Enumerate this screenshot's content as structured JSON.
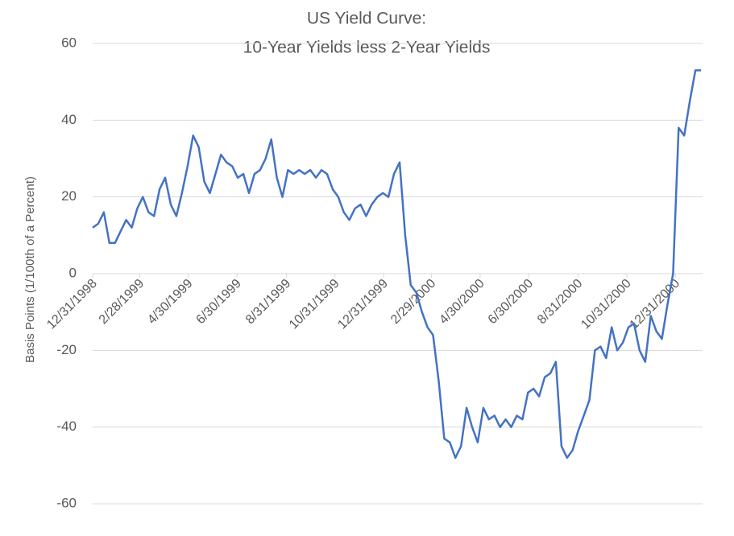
{
  "chart_data": {
    "type": "line",
    "title": [
      "US Yield Curve:",
      "10-Year Yields less 2-Year Yields"
    ],
    "y_label": "Basis Points (1/100th of a Percent)",
    "x": [
      "12/31/1998",
      "1/7/1999",
      "1/14/1999",
      "1/21/1999",
      "1/28/1999",
      "2/4/1999",
      "2/11/1999",
      "2/18/1999",
      "2/25/1999",
      "3/4/1999",
      "3/11/1999",
      "3/18/1999",
      "3/25/1999",
      "4/1/1999",
      "4/8/1999",
      "4/15/1999",
      "4/22/1999",
      "4/29/1999",
      "5/6/1999",
      "5/13/1999",
      "5/20/1999",
      "5/27/1999",
      "6/3/1999",
      "6/10/1999",
      "6/17/1999",
      "6/24/1999",
      "7/1/1999",
      "7/8/1999",
      "7/15/1999",
      "7/22/1999",
      "7/29/1999",
      "8/5/1999",
      "8/12/1999",
      "8/19/1999",
      "8/26/1999",
      "9/2/1999",
      "9/9/1999",
      "9/16/1999",
      "9/23/1999",
      "9/30/1999",
      "10/7/1999",
      "10/14/1999",
      "10/21/1999",
      "10/28/1999",
      "11/4/1999",
      "11/11/1999",
      "11/18/1999",
      "11/25/1999",
      "12/2/1999",
      "12/9/1999",
      "12/16/1999",
      "12/23/1999",
      "12/30/1999",
      "1/6/2000",
      "1/13/2000",
      "1/20/2000",
      "1/27/2000",
      "2/3/2000",
      "2/10/2000",
      "2/17/2000",
      "2/24/2000",
      "3/2/2000",
      "3/9/2000",
      "3/16/2000",
      "3/23/2000",
      "3/30/2000",
      "4/6/2000",
      "4/13/2000",
      "4/20/2000",
      "4/27/2000",
      "5/4/2000",
      "5/11/2000",
      "5/18/2000",
      "5/25/2000",
      "6/1/2000",
      "6/8/2000",
      "6/15/2000",
      "6/22/2000",
      "6/29/2000",
      "7/6/2000",
      "7/13/2000",
      "7/20/2000",
      "7/27/2000",
      "8/3/2000",
      "8/10/2000",
      "8/17/2000",
      "8/24/2000",
      "8/31/2000",
      "9/7/2000",
      "9/14/2000",
      "9/21/2000",
      "9/28/2000",
      "10/5/2000",
      "10/12/2000",
      "10/19/2000",
      "10/26/2000",
      "11/2/2000",
      "11/9/2000",
      "11/16/2000",
      "11/23/2000",
      "11/30/2000",
      "12/7/2000",
      "12/14/2000",
      "12/21/2000",
      "12/28/2000",
      "1/4/2001",
      "1/11/2001",
      "1/18/2001",
      "1/25/2001",
      "2/1/2001"
    ],
    "series": [
      {
        "name": "10Y-2Y",
        "color": "#4472c4",
        "values": [
          12,
          13,
          16,
          8,
          8,
          11,
          14,
          12,
          17,
          20,
          16,
          15,
          22,
          25,
          18,
          15,
          21,
          28,
          36,
          33,
          24,
          21,
          26,
          31,
          29,
          28,
          25,
          26,
          21,
          26,
          27,
          30,
          35,
          25,
          20,
          27,
          26,
          27,
          26,
          27,
          25,
          27,
          26,
          22,
          20,
          16,
          14,
          17,
          18,
          15,
          18,
          20,
          21,
          20,
          26,
          29,
          10,
          -3,
          -5,
          -10,
          -14,
          -16,
          -28,
          -43,
          -44,
          -48,
          -45,
          -35,
          -40,
          -44,
          -35,
          -38,
          -37,
          -40,
          -38,
          -40,
          -37,
          -38,
          -31,
          -30,
          -32,
          -27,
          -26,
          -23,
          -45,
          -48,
          -46,
          -41,
          -37,
          -33,
          -20,
          -19,
          -22,
          -14,
          -20,
          -18,
          -14,
          -13,
          -20,
          -23,
          -11,
          -15,
          -17,
          -8,
          0,
          38,
          36,
          45,
          53,
          53
        ]
      }
    ],
    "xlim": [
      "12/31/1998",
      "2/3/2001"
    ],
    "xticks": [
      "12/31/1998",
      "2/28/1999",
      "4/30/1999",
      "6/30/1999",
      "8/31/1999",
      "10/31/1999",
      "12/31/1999",
      "2/29/2000",
      "4/30/2000",
      "6/30/2000",
      "8/31/2000",
      "10/31/2000",
      "12/31/2000"
    ],
    "ylim": [
      -60,
      60
    ],
    "yticks": [
      -60,
      -40,
      -20,
      0,
      20,
      40,
      60
    ],
    "grid": true
  }
}
